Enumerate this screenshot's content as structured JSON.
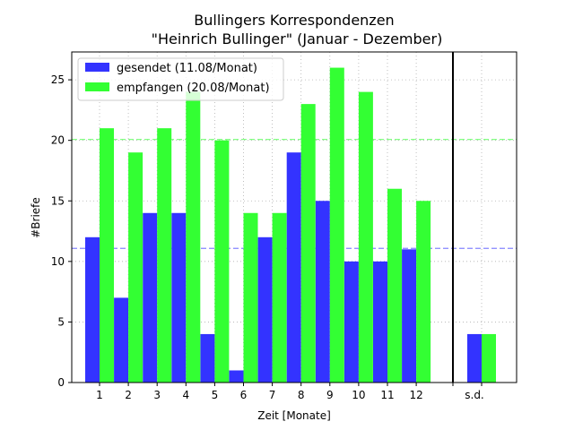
{
  "chart_data": {
    "type": "bar",
    "title_line1": "Bullingers Korrespondenzen",
    "title_line2": "\"Heinrich Bullinger\" (Januar - Dezember)",
    "xlabel": "Zeit [Monate]",
    "ylabel": "#Briefe",
    "categories": [
      "1",
      "2",
      "3",
      "4",
      "5",
      "6",
      "7",
      "8",
      "9",
      "10",
      "11",
      "12"
    ],
    "extra_category": "s.d.",
    "ylim": [
      0,
      27.3
    ],
    "yticks": [
      0,
      5,
      10,
      15,
      20,
      25
    ],
    "grid": true,
    "legend_position": "top-left",
    "series": [
      {
        "name": "gesendet (11.08/Monat)",
        "color": "#3333ff",
        "values": [
          12,
          7,
          14,
          14,
          4,
          1,
          12,
          19,
          15,
          10,
          10,
          11
        ],
        "extra_value": 4,
        "average": 11.08
      },
      {
        "name": "empfangen (20.08/Monat)",
        "color": "#33ff33",
        "values": [
          21,
          19,
          21,
          24,
          20,
          14,
          14,
          23,
          26,
          24,
          16,
          15
        ],
        "extra_value": 4,
        "average": 20.08
      }
    ]
  }
}
